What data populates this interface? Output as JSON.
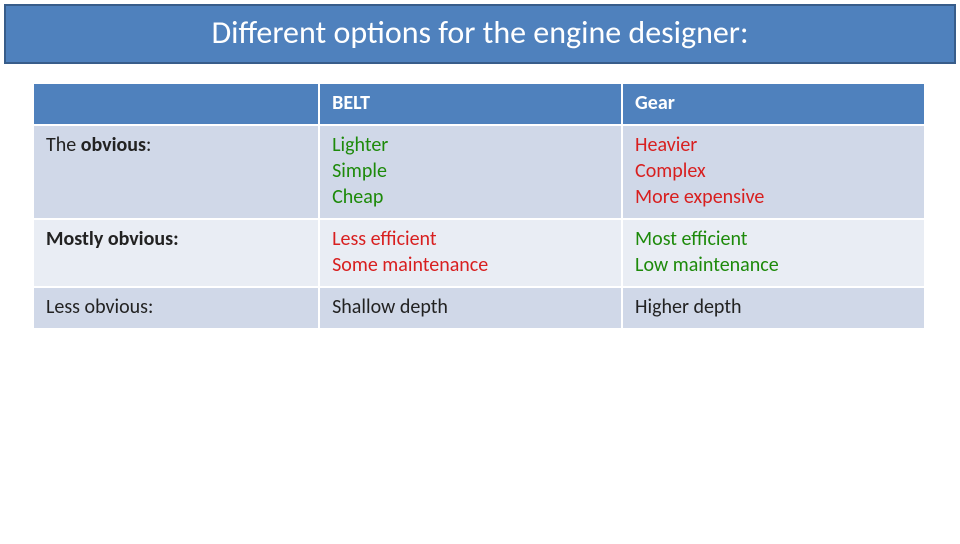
{
  "title": "Different options for the engine designer:",
  "colors": {
    "title_bg": "#4f81bd",
    "title_border": "#385d8a",
    "title_text": "#ffffff",
    "header_bg": "#4f81bd",
    "header_text": "#ffffff",
    "row_band_a": "#d0d8e8",
    "row_band_b": "#e9edf4",
    "cell_border": "#ffffff",
    "text_default": "#222222",
    "text_green": "#1d8a0a",
    "text_red": "#d81f1f"
  },
  "columns": {
    "label": "",
    "belt": "BELT",
    "gear": "Gear"
  },
  "rows": [
    {
      "label_prefix": "The ",
      "label_bold": "obvious",
      "label_suffix": ":",
      "label_weight": "normal",
      "belt": [
        {
          "text": "Lighter",
          "color": "green"
        },
        {
          "text": "Simple",
          "color": "green"
        },
        {
          "text": "Cheap",
          "color": "green"
        }
      ],
      "gear": [
        {
          "text": "Heavier",
          "color": "red"
        },
        {
          "text": "Complex",
          "color": "red"
        },
        {
          "text": "More expensive",
          "color": "red"
        }
      ]
    },
    {
      "label_prefix": "",
      "label_bold": "Mostly obvious",
      "label_suffix": ":",
      "label_weight": "bold",
      "belt": [
        {
          "text": "Less efficient",
          "color": "red"
        },
        {
          "text": "Some maintenance",
          "color": "red"
        }
      ],
      "gear": [
        {
          "text": "Most efficient",
          "color": "green"
        },
        {
          "text": "Low maintenance",
          "color": "green"
        }
      ]
    },
    {
      "label_prefix": "Less obvious:",
      "label_bold": "",
      "label_suffix": "",
      "label_weight": "normal",
      "belt": [
        {
          "text": "Shallow depth",
          "color": "default"
        }
      ],
      "gear": [
        {
          "text": "Higher depth",
          "color": "default"
        }
      ]
    }
  ]
}
